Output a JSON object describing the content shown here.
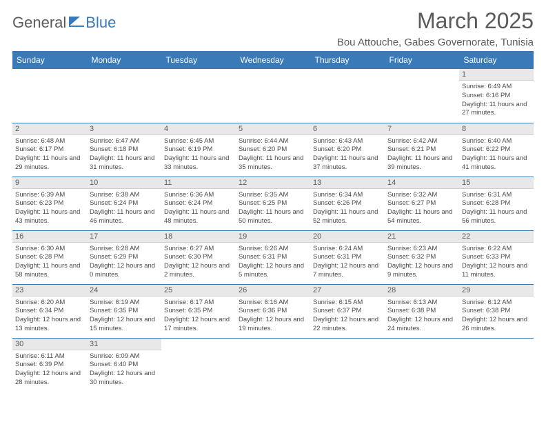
{
  "brand": {
    "part1": "General",
    "part2": "Blue"
  },
  "title": "March 2025",
  "location": "Bou Attouche, Gabes Governorate, Tunisia",
  "colors": {
    "accent": "#3a7ab8",
    "header_bg": "#3a7ab8",
    "header_text": "#ffffff",
    "text": "#4a4a4a",
    "daynum_bg": "#e8e8e8"
  },
  "day_headers": [
    "Sunday",
    "Monday",
    "Tuesday",
    "Wednesday",
    "Thursday",
    "Friday",
    "Saturday"
  ],
  "weeks": [
    [
      null,
      null,
      null,
      null,
      null,
      null,
      {
        "n": "1",
        "sr": "Sunrise: 6:49 AM",
        "ss": "Sunset: 6:16 PM",
        "dl": "Daylight: 11 hours and 27 minutes."
      }
    ],
    [
      {
        "n": "2",
        "sr": "Sunrise: 6:48 AM",
        "ss": "Sunset: 6:17 PM",
        "dl": "Daylight: 11 hours and 29 minutes."
      },
      {
        "n": "3",
        "sr": "Sunrise: 6:47 AM",
        "ss": "Sunset: 6:18 PM",
        "dl": "Daylight: 11 hours and 31 minutes."
      },
      {
        "n": "4",
        "sr": "Sunrise: 6:45 AM",
        "ss": "Sunset: 6:19 PM",
        "dl": "Daylight: 11 hours and 33 minutes."
      },
      {
        "n": "5",
        "sr": "Sunrise: 6:44 AM",
        "ss": "Sunset: 6:20 PM",
        "dl": "Daylight: 11 hours and 35 minutes."
      },
      {
        "n": "6",
        "sr": "Sunrise: 6:43 AM",
        "ss": "Sunset: 6:20 PM",
        "dl": "Daylight: 11 hours and 37 minutes."
      },
      {
        "n": "7",
        "sr": "Sunrise: 6:42 AM",
        "ss": "Sunset: 6:21 PM",
        "dl": "Daylight: 11 hours and 39 minutes."
      },
      {
        "n": "8",
        "sr": "Sunrise: 6:40 AM",
        "ss": "Sunset: 6:22 PM",
        "dl": "Daylight: 11 hours and 41 minutes."
      }
    ],
    [
      {
        "n": "9",
        "sr": "Sunrise: 6:39 AM",
        "ss": "Sunset: 6:23 PM",
        "dl": "Daylight: 11 hours and 43 minutes."
      },
      {
        "n": "10",
        "sr": "Sunrise: 6:38 AM",
        "ss": "Sunset: 6:24 PM",
        "dl": "Daylight: 11 hours and 46 minutes."
      },
      {
        "n": "11",
        "sr": "Sunrise: 6:36 AM",
        "ss": "Sunset: 6:24 PM",
        "dl": "Daylight: 11 hours and 48 minutes."
      },
      {
        "n": "12",
        "sr": "Sunrise: 6:35 AM",
        "ss": "Sunset: 6:25 PM",
        "dl": "Daylight: 11 hours and 50 minutes."
      },
      {
        "n": "13",
        "sr": "Sunrise: 6:34 AM",
        "ss": "Sunset: 6:26 PM",
        "dl": "Daylight: 11 hours and 52 minutes."
      },
      {
        "n": "14",
        "sr": "Sunrise: 6:32 AM",
        "ss": "Sunset: 6:27 PM",
        "dl": "Daylight: 11 hours and 54 minutes."
      },
      {
        "n": "15",
        "sr": "Sunrise: 6:31 AM",
        "ss": "Sunset: 6:28 PM",
        "dl": "Daylight: 11 hours and 56 minutes."
      }
    ],
    [
      {
        "n": "16",
        "sr": "Sunrise: 6:30 AM",
        "ss": "Sunset: 6:28 PM",
        "dl": "Daylight: 11 hours and 58 minutes."
      },
      {
        "n": "17",
        "sr": "Sunrise: 6:28 AM",
        "ss": "Sunset: 6:29 PM",
        "dl": "Daylight: 12 hours and 0 minutes."
      },
      {
        "n": "18",
        "sr": "Sunrise: 6:27 AM",
        "ss": "Sunset: 6:30 PM",
        "dl": "Daylight: 12 hours and 2 minutes."
      },
      {
        "n": "19",
        "sr": "Sunrise: 6:26 AM",
        "ss": "Sunset: 6:31 PM",
        "dl": "Daylight: 12 hours and 5 minutes."
      },
      {
        "n": "20",
        "sr": "Sunrise: 6:24 AM",
        "ss": "Sunset: 6:31 PM",
        "dl": "Daylight: 12 hours and 7 minutes."
      },
      {
        "n": "21",
        "sr": "Sunrise: 6:23 AM",
        "ss": "Sunset: 6:32 PM",
        "dl": "Daylight: 12 hours and 9 minutes."
      },
      {
        "n": "22",
        "sr": "Sunrise: 6:22 AM",
        "ss": "Sunset: 6:33 PM",
        "dl": "Daylight: 12 hours and 11 minutes."
      }
    ],
    [
      {
        "n": "23",
        "sr": "Sunrise: 6:20 AM",
        "ss": "Sunset: 6:34 PM",
        "dl": "Daylight: 12 hours and 13 minutes."
      },
      {
        "n": "24",
        "sr": "Sunrise: 6:19 AM",
        "ss": "Sunset: 6:35 PM",
        "dl": "Daylight: 12 hours and 15 minutes."
      },
      {
        "n": "25",
        "sr": "Sunrise: 6:17 AM",
        "ss": "Sunset: 6:35 PM",
        "dl": "Daylight: 12 hours and 17 minutes."
      },
      {
        "n": "26",
        "sr": "Sunrise: 6:16 AM",
        "ss": "Sunset: 6:36 PM",
        "dl": "Daylight: 12 hours and 19 minutes."
      },
      {
        "n": "27",
        "sr": "Sunrise: 6:15 AM",
        "ss": "Sunset: 6:37 PM",
        "dl": "Daylight: 12 hours and 22 minutes."
      },
      {
        "n": "28",
        "sr": "Sunrise: 6:13 AM",
        "ss": "Sunset: 6:38 PM",
        "dl": "Daylight: 12 hours and 24 minutes."
      },
      {
        "n": "29",
        "sr": "Sunrise: 6:12 AM",
        "ss": "Sunset: 6:38 PM",
        "dl": "Daylight: 12 hours and 26 minutes."
      }
    ],
    [
      {
        "n": "30",
        "sr": "Sunrise: 6:11 AM",
        "ss": "Sunset: 6:39 PM",
        "dl": "Daylight: 12 hours and 28 minutes."
      },
      {
        "n": "31",
        "sr": "Sunrise: 6:09 AM",
        "ss": "Sunset: 6:40 PM",
        "dl": "Daylight: 12 hours and 30 minutes."
      },
      null,
      null,
      null,
      null,
      null
    ]
  ]
}
